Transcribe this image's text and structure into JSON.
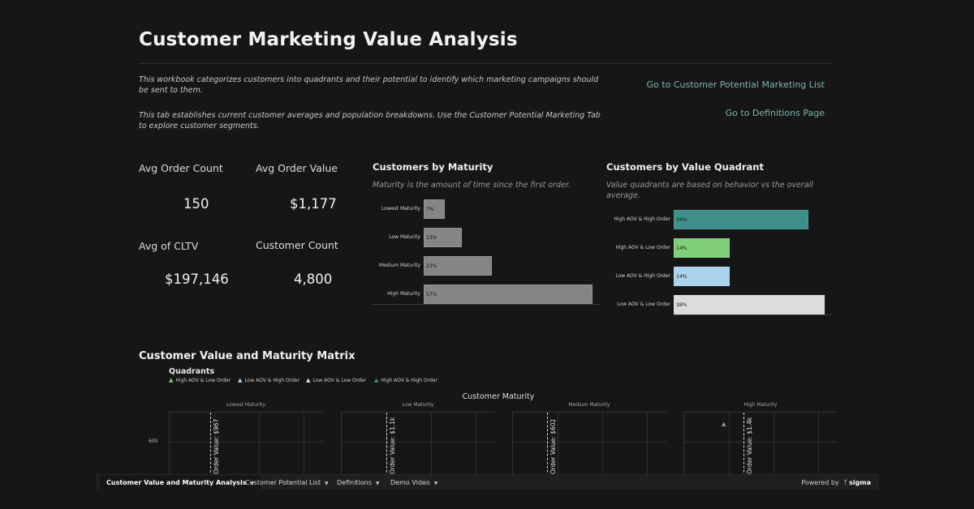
{
  "header": {
    "title": "Customer Marketing Value Analysis",
    "description_1": "This workbook categorizes customers into quadrants and their potential to identify which marketing campaigns should be sent to them.",
    "description_2": "This tab establishes current customer averages and population breakdowns. Use the Customer Potential Marketing Tab to explore customer segments.",
    "link_1": "Go to Customer Potential Marketing List",
    "link_2": "Go to Definitions Page"
  },
  "kpis": [
    {
      "label": "Avg Order Count",
      "value": "150"
    },
    {
      "label": "Avg Order Value",
      "value": "$1,177"
    },
    {
      "label": "Avg of CLTV",
      "value": "$197,146"
    },
    {
      "label": "Customer Count",
      "value": "4,800"
    }
  ],
  "chart_data": [
    {
      "type": "bar",
      "orientation": "horizontal",
      "title": "Customers by Maturity",
      "subtitle": "Maturity is the amount of time since the first order.",
      "categories": [
        "Lowest Maturity",
        "Low Maturity",
        "Medium Maturity",
        "High Maturity"
      ],
      "values": [
        7,
        13,
        23,
        57
      ],
      "data_labels": [
        "7%",
        "13%",
        "23%",
        "57%"
      ],
      "colors": [
        "#858585",
        "#858585",
        "#858585",
        "#858585"
      ],
      "xlim": [
        0,
        57
      ]
    },
    {
      "type": "bar",
      "orientation": "horizontal",
      "title": "Customers by Value Quadrant",
      "subtitle": "Value quadrants are based on behavior vs the overall average.",
      "categories": [
        "High AOV & High Order",
        "High AOV & Low Order",
        "Low AOV & High Order",
        "Low AOV & Low Order"
      ],
      "values": [
        34,
        14,
        14,
        38
      ],
      "data_labels": [
        "34%",
        "14%",
        "14%",
        "38%"
      ],
      "colors": [
        "#3d8f89",
        "#7fcf7a",
        "#a9d3ec",
        "#dcdcdc"
      ],
      "xlim": [
        0,
        38
      ]
    },
    {
      "type": "scatter",
      "title": "Customer Value and Maturity Matrix",
      "legend_title": "Quadrants",
      "legend": [
        {
          "name": "High AOV & Low Order",
          "color": "#7fcf7a"
        },
        {
          "name": "Low AOV & High Order",
          "color": "#a9d3ec"
        },
        {
          "name": "Low AOV & Low Order",
          "color": "#dcdcdc"
        },
        {
          "name": "High AOV & High Order",
          "color": "#3d8f89"
        }
      ],
      "column_header": "Customer Maturity",
      "panels": [
        "Lowest Maturity",
        "Low Maturity",
        "Medium Maturity",
        "High Maturity"
      ],
      "reference_lines": [
        "Order Value: $967",
        "Order Value: $1.1k",
        "Order Value: $602",
        "Order Value: $1.4k"
      ],
      "y_ticks": [
        "600"
      ]
    }
  ],
  "tabs": {
    "items": [
      "Customer Value and Maturity Analysis",
      "Customer Potential List",
      "Definitions",
      "Demo Video"
    ],
    "active": 0,
    "powered_by": "Powered by",
    "brand": "sigma"
  }
}
